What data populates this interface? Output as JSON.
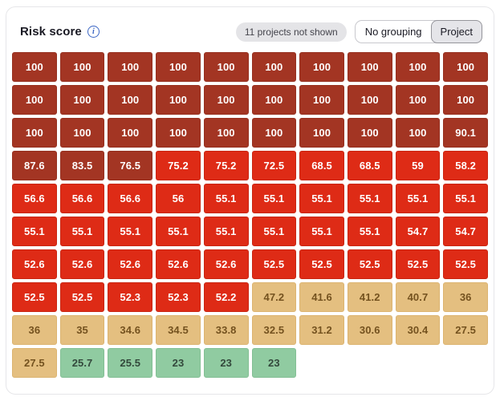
{
  "header": {
    "title": "Risk score",
    "icons": {
      "info": "i"
    },
    "badge": "11 projects not shown",
    "toggle": {
      "options": [
        "No grouping",
        "Project"
      ],
      "selected": "Project"
    }
  },
  "chart_data": {
    "type": "heatmap",
    "title": "Risk score",
    "columns": 10,
    "legend": "none",
    "levels": {
      "critical": "#a33523",
      "high": "#de2b16",
      "medium": "#e4bf80",
      "low": "#90cba1"
    },
    "tiles": [
      {
        "v": 100,
        "l": "critical"
      },
      {
        "v": 100,
        "l": "critical"
      },
      {
        "v": 100,
        "l": "critical"
      },
      {
        "v": 100,
        "l": "critical"
      },
      {
        "v": 100,
        "l": "critical"
      },
      {
        "v": 100,
        "l": "critical"
      },
      {
        "v": 100,
        "l": "critical"
      },
      {
        "v": 100,
        "l": "critical"
      },
      {
        "v": 100,
        "l": "critical"
      },
      {
        "v": 100,
        "l": "critical"
      },
      {
        "v": 100,
        "l": "critical"
      },
      {
        "v": 100,
        "l": "critical"
      },
      {
        "v": 100,
        "l": "critical"
      },
      {
        "v": 100,
        "l": "critical"
      },
      {
        "v": 100,
        "l": "critical"
      },
      {
        "v": 100,
        "l": "critical"
      },
      {
        "v": 100,
        "l": "critical"
      },
      {
        "v": 100,
        "l": "critical"
      },
      {
        "v": 100,
        "l": "critical"
      },
      {
        "v": 100,
        "l": "critical"
      },
      {
        "v": 100,
        "l": "critical"
      },
      {
        "v": 100,
        "l": "critical"
      },
      {
        "v": 100,
        "l": "critical"
      },
      {
        "v": 100,
        "l": "critical"
      },
      {
        "v": 100,
        "l": "critical"
      },
      {
        "v": 100,
        "l": "critical"
      },
      {
        "v": 100,
        "l": "critical"
      },
      {
        "v": 100,
        "l": "critical"
      },
      {
        "v": 100,
        "l": "critical"
      },
      {
        "v": 90.1,
        "l": "critical"
      },
      {
        "v": 87.6,
        "l": "critical"
      },
      {
        "v": 83.5,
        "l": "critical"
      },
      {
        "v": 76.5,
        "l": "critical"
      },
      {
        "v": 75.2,
        "l": "high"
      },
      {
        "v": 75.2,
        "l": "high"
      },
      {
        "v": 72.5,
        "l": "high"
      },
      {
        "v": 68.5,
        "l": "high"
      },
      {
        "v": 68.5,
        "l": "high"
      },
      {
        "v": 59,
        "l": "high"
      },
      {
        "v": 58.2,
        "l": "high"
      },
      {
        "v": 56.6,
        "l": "high"
      },
      {
        "v": 56.6,
        "l": "high"
      },
      {
        "v": 56.6,
        "l": "high"
      },
      {
        "v": 56,
        "l": "high"
      },
      {
        "v": 55.1,
        "l": "high"
      },
      {
        "v": 55.1,
        "l": "high"
      },
      {
        "v": 55.1,
        "l": "high"
      },
      {
        "v": 55.1,
        "l": "high"
      },
      {
        "v": 55.1,
        "l": "high"
      },
      {
        "v": 55.1,
        "l": "high"
      },
      {
        "v": 55.1,
        "l": "high"
      },
      {
        "v": 55.1,
        "l": "high"
      },
      {
        "v": 55.1,
        "l": "high"
      },
      {
        "v": 55.1,
        "l": "high"
      },
      {
        "v": 55.1,
        "l": "high"
      },
      {
        "v": 55.1,
        "l": "high"
      },
      {
        "v": 55.1,
        "l": "high"
      },
      {
        "v": 55.1,
        "l": "high"
      },
      {
        "v": 54.7,
        "l": "high"
      },
      {
        "v": 54.7,
        "l": "high"
      },
      {
        "v": 52.6,
        "l": "high"
      },
      {
        "v": 52.6,
        "l": "high"
      },
      {
        "v": 52.6,
        "l": "high"
      },
      {
        "v": 52.6,
        "l": "high"
      },
      {
        "v": 52.6,
        "l": "high"
      },
      {
        "v": 52.5,
        "l": "high"
      },
      {
        "v": 52.5,
        "l": "high"
      },
      {
        "v": 52.5,
        "l": "high"
      },
      {
        "v": 52.5,
        "l": "high"
      },
      {
        "v": 52.5,
        "l": "high"
      },
      {
        "v": 52.5,
        "l": "high"
      },
      {
        "v": 52.5,
        "l": "high"
      },
      {
        "v": 52.3,
        "l": "high"
      },
      {
        "v": 52.3,
        "l": "high"
      },
      {
        "v": 52.2,
        "l": "high"
      },
      {
        "v": 47.2,
        "l": "medium"
      },
      {
        "v": 41.6,
        "l": "medium"
      },
      {
        "v": 41.2,
        "l": "medium"
      },
      {
        "v": 40.7,
        "l": "medium"
      },
      {
        "v": 36,
        "l": "medium"
      },
      {
        "v": 36,
        "l": "medium"
      },
      {
        "v": 35,
        "l": "medium"
      },
      {
        "v": 34.6,
        "l": "medium"
      },
      {
        "v": 34.5,
        "l": "medium"
      },
      {
        "v": 33.8,
        "l": "medium"
      },
      {
        "v": 32.5,
        "l": "medium"
      },
      {
        "v": 31.2,
        "l": "medium"
      },
      {
        "v": 30.6,
        "l": "medium"
      },
      {
        "v": 30.4,
        "l": "medium"
      },
      {
        "v": 27.5,
        "l": "medium"
      },
      {
        "v": 27.5,
        "l": "medium"
      },
      {
        "v": 25.7,
        "l": "low"
      },
      {
        "v": 25.5,
        "l": "low"
      },
      {
        "v": 23,
        "l": "low"
      },
      {
        "v": 23,
        "l": "low"
      },
      {
        "v": 23,
        "l": "low"
      }
    ]
  }
}
